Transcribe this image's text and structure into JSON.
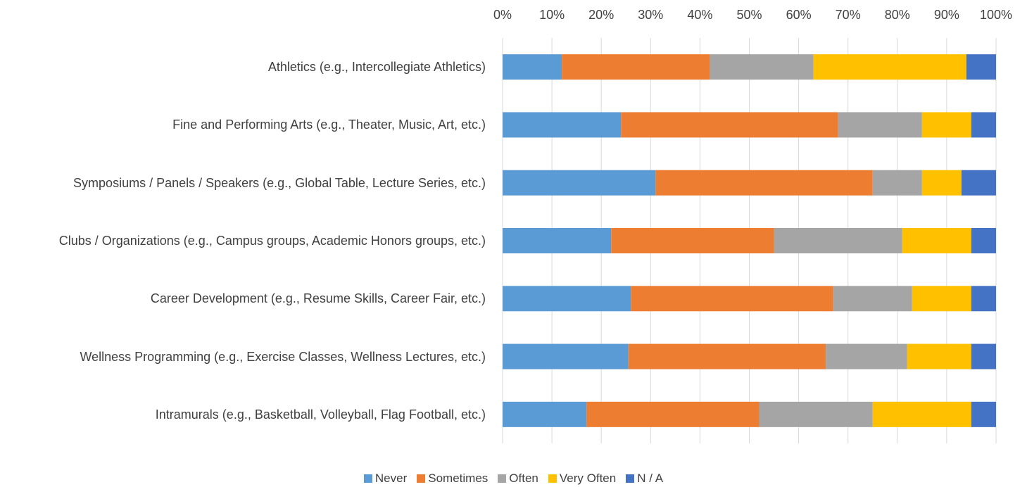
{
  "chart_data": {
    "type": "stacked-bar-horizontal",
    "categories": [
      "Athletics (e.g., Intercollegiate Athletics)",
      "Fine and Performing Arts (e.g., Theater, Music, Art, etc.)",
      "Symposiums / Panels / Speakers (e.g., Global Table, Lecture Series, etc.)",
      "Clubs / Organizations (e.g., Campus groups, Academic Honors groups, etc.)",
      "Career Development (e.g., Resume Skills, Career Fair, etc.)",
      "Wellness Programming (e.g., Exercise Classes, Wellness Lectures, etc.)",
      "Intramurals (e.g., Basketball, Volleyball, Flag Football, etc.)"
    ],
    "series": [
      {
        "name": "Never",
        "color": "#5b9bd5",
        "values": [
          12,
          24,
          31,
          22,
          26,
          25.5,
          17
        ]
      },
      {
        "name": "Sometimes",
        "color": "#ed7d31",
        "values": [
          30,
          44,
          44,
          33,
          41,
          40,
          35
        ]
      },
      {
        "name": "Often",
        "color": "#a5a5a5",
        "values": [
          21,
          17,
          10,
          26,
          16,
          16.5,
          23
        ]
      },
      {
        "name": "Very Often",
        "color": "#ffc000",
        "values": [
          31,
          10,
          8,
          14,
          12,
          13,
          20
        ]
      },
      {
        "name": "N / A",
        "color": "#4472c4",
        "values": [
          6,
          5,
          7,
          5,
          5,
          5,
          5
        ]
      }
    ],
    "xlim": [
      0,
      100
    ],
    "xticks": [
      {
        "value": 0,
        "label": "0%"
      },
      {
        "value": 10,
        "label": "10%"
      },
      {
        "value": 20,
        "label": "20%"
      },
      {
        "value": 30,
        "label": "30%"
      },
      {
        "value": 40,
        "label": "40%"
      },
      {
        "value": 50,
        "label": "50%"
      },
      {
        "value": 60,
        "label": "60%"
      },
      {
        "value": 70,
        "label": "70%"
      },
      {
        "value": 80,
        "label": "80%"
      },
      {
        "value": 90,
        "label": "90%"
      },
      {
        "value": 100,
        "label": "100%"
      }
    ],
    "grid": true,
    "legend": "bottom"
  }
}
